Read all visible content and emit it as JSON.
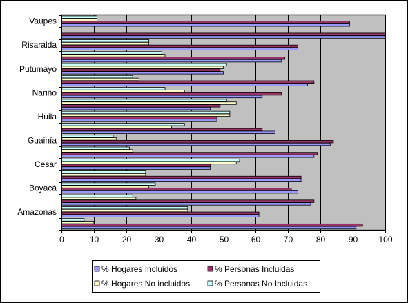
{
  "chart_data": {
    "type": "bar",
    "orientation": "horizontal",
    "categories": [
      "Amazonas",
      "Boyacá",
      "Cesar",
      "Guainía",
      "Huila",
      "Nariño",
      "Putumayo",
      "Risaralda",
      "Vaupes"
    ],
    "category_labels_shown": [
      "Vaupes",
      "Risaralda",
      "Putumayo",
      "Nariño",
      "Huila",
      "Guainía",
      "Cesar",
      "Boyacá",
      "Amazonas"
    ],
    "row_groups": [
      {
        "row": 1,
        "values": [
          91,
          93,
          10,
          7
        ]
      },
      {
        "row": 2,
        "values": [
          61,
          61,
          39,
          39
        ]
      },
      {
        "row": 3,
        "values": [
          77,
          78,
          23,
          22
        ]
      },
      {
        "row": 4,
        "values": [
          73,
          71,
          27,
          29
        ]
      },
      {
        "row": 5,
        "values": [
          74,
          74,
          26,
          26
        ]
      },
      {
        "row": 6,
        "values": [
          46,
          46,
          54,
          55
        ]
      },
      {
        "row": 7,
        "values": [
          78,
          79,
          22,
          21
        ]
      },
      {
        "row": 8,
        "values": [
          83,
          84,
          17,
          16
        ]
      },
      {
        "row": 9,
        "values": [
          66,
          62,
          34,
          38
        ]
      },
      {
        "row": 10,
        "values": [
          48,
          48,
          52,
          52
        ]
      },
      {
        "row": 11,
        "values": [
          46,
          49,
          54,
          51
        ]
      },
      {
        "row": 12,
        "values": [
          62,
          68,
          38,
          32
        ]
      },
      {
        "row": 13,
        "values": [
          76,
          78,
          24,
          22
        ]
      },
      {
        "row": 14,
        "values": [
          50,
          49,
          50,
          51
        ]
      },
      {
        "row": 15,
        "values": [
          68,
          69,
          32,
          31
        ]
      },
      {
        "row": 16,
        "values": [
          73,
          73,
          27,
          27
        ]
      },
      {
        "row": 17,
        "values": [
          100,
          100,
          0,
          0
        ]
      },
      {
        "row": 18,
        "values": [
          89,
          89,
          11,
          11
        ]
      }
    ],
    "series": [
      {
        "name": "% Hogares Incluidos",
        "color": "#9999FF"
      },
      {
        "name": "% Personas Incluidas",
        "color": "#993366"
      },
      {
        "name": "% Hogares No incluidos",
        "color": "#FFFFCC"
      },
      {
        "name": "% Personas No Incluidas",
        "color": "#CCFFFF"
      }
    ],
    "xlim": [
      0,
      100
    ],
    "xticks": [
      0,
      10,
      20,
      30,
      40,
      50,
      60,
      70,
      80,
      90,
      100
    ],
    "legend_position": "bottom",
    "plot_background": "#C0C0C0",
    "grid": true
  }
}
